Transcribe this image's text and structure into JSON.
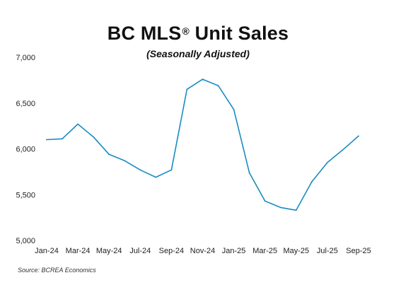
{
  "chart_data": {
    "type": "line",
    "title": "BC MLS",
    "title_mark": "®",
    "title_suffix": " Unit Sales",
    "subtitle": "(Seasonally Adjusted)",
    "source": "Source: BCREA Economics",
    "x": [
      "Jan-24",
      "Feb-24",
      "Mar-24",
      "Apr-24",
      "May-24",
      "Jun-24",
      "Jul-24",
      "Aug-24",
      "Sep-24",
      "Oct-24",
      "Nov-24",
      "Dec-24",
      "Jan-25",
      "Feb-25",
      "Mar-25",
      "Apr-25",
      "May-25",
      "Jun-25",
      "Jul-25",
      "Aug-25",
      "Sep-25"
    ],
    "x_tick_labels": [
      "Jan-24",
      "Mar-24",
      "May-24",
      "Jul-24",
      "Sep-24",
      "Nov-24",
      "Jan-25",
      "Mar-25",
      "May-25",
      "Jul-25",
      "Sep-25"
    ],
    "series": [
      {
        "values": [
          6100,
          6110,
          6270,
          6130,
          5940,
          5870,
          5770,
          5690,
          5770,
          6650,
          6760,
          6690,
          6430,
          5740,
          5430,
          5360,
          5330,
          5640,
          5850,
          5990,
          6140
        ],
        "color": "#1a8bc1"
      }
    ],
    "ylim": [
      5000,
      7000
    ],
    "y_ticks": [
      5000,
      5500,
      6000,
      6500,
      7000
    ],
    "y_tick_labels": [
      "5,000",
      "5,500",
      "6,000",
      "6,500",
      "7,000"
    ],
    "xlabel": "",
    "ylabel": "",
    "grid": false,
    "legend": "none"
  }
}
